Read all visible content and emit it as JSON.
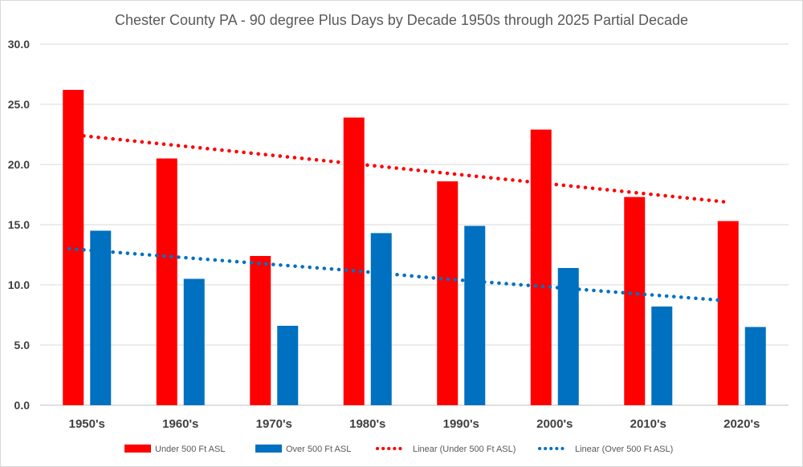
{
  "chart_data": {
    "type": "bar",
    "title": "Chester County PA - 90 degree Plus Days by Decade 1950s through 2025 Partial Decade",
    "xlabel": "",
    "ylabel": "",
    "categories": [
      "1950's",
      "1960's",
      "1970's",
      "1980's",
      "1990's",
      "2000's",
      "2010's",
      "2020's"
    ],
    "series": [
      {
        "name": "Under 500 Ft ASL",
        "color": "#ff0000",
        "values": [
          26.2,
          20.5,
          12.4,
          23.9,
          18.6,
          22.9,
          17.3,
          15.3
        ]
      },
      {
        "name": "Over 500 Ft ASL",
        "color": "#0070c0",
        "values": [
          14.5,
          10.5,
          6.6,
          14.3,
          14.9,
          11.4,
          8.2,
          6.5
        ]
      }
    ],
    "trendlines": [
      {
        "name": "Linear (Under 500 Ft ASL)",
        "color": "#ff0000",
        "style": "dotted",
        "values": [
          22.5,
          21.7,
          20.9,
          20.1,
          19.3,
          18.5,
          17.7,
          16.9
        ]
      },
      {
        "name": "Linear (Over 500 Ft ASL)",
        "color": "#0070c0",
        "style": "dotted",
        "values": [
          13.0,
          12.4,
          11.8,
          11.2,
          10.5,
          9.9,
          9.3,
          8.7
        ]
      }
    ],
    "ylim": [
      0,
      30
    ],
    "yticks": [
      "0.0",
      "5.0",
      "10.0",
      "15.0",
      "20.0",
      "25.0",
      "30.0"
    ],
    "grid": true,
    "legend_position": "bottom"
  }
}
